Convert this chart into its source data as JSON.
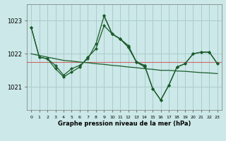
{
  "title": "Graphe pression niveau de la mer (hPa)",
  "bg_color": "#cce8e8",
  "grid_color": "#aacccc",
  "line_color": "#1a5c2a",
  "x_labels": [
    "0",
    "1",
    "2",
    "3",
    "4",
    "5",
    "6",
    "7",
    "8",
    "9",
    "10",
    "11",
    "12",
    "13",
    "14",
    "15",
    "16",
    "17",
    "18",
    "19",
    "20",
    "21",
    "22",
    "23"
  ],
  "yticks": [
    1021,
    1022,
    1023
  ],
  "ylim": [
    1020.3,
    1023.5
  ],
  "xlim": [
    -0.5,
    23.5
  ],
  "refline_y": 1021.75,
  "refline_color": "#cc3333",
  "line1": [
    1022.8,
    1021.9,
    1021.85,
    1021.65,
    1021.35,
    1021.55,
    1021.65,
    1021.85,
    1022.3,
    1023.15,
    1022.6,
    1022.45,
    1022.25,
    1021.75,
    1021.65,
    1020.95,
    1020.6,
    1021.05,
    1021.6,
    1021.7,
    1022.0,
    1022.05,
    1022.05,
    1021.7
  ],
  "line2_x": [
    0,
    1,
    2,
    3,
    4,
    5,
    6,
    7,
    8,
    9,
    10,
    11,
    12,
    13,
    14,
    15,
    16,
    17,
    18,
    19,
    20,
    21,
    22,
    23
  ],
  "line2": [
    1022.0,
    1021.95,
    1021.9,
    1021.85,
    1021.8,
    1021.78,
    1021.75,
    1021.73,
    1021.7,
    1021.68,
    1021.65,
    1021.63,
    1021.6,
    1021.58,
    1021.55,
    1021.53,
    1021.5,
    1021.5,
    1021.48,
    1021.47,
    1021.45,
    1021.43,
    1021.42,
    1021.4
  ],
  "line3_x": [
    0,
    1,
    2,
    3,
    4,
    5,
    6,
    7,
    8,
    9,
    10,
    11,
    12,
    13,
    14
  ],
  "line3": [
    1022.8,
    1021.9,
    1021.85,
    1021.55,
    1021.3,
    1021.45,
    1021.6,
    1021.9,
    1022.15,
    1022.85,
    1022.6,
    1022.45,
    1022.2,
    1021.75,
    1021.6
  ],
  "line4_x": [
    9,
    10,
    11,
    12,
    13,
    14,
    15,
    16,
    17,
    18,
    19,
    20,
    21,
    22,
    23
  ],
  "line4": [
    1023.15,
    1022.6,
    1022.45,
    1022.2,
    1021.75,
    1021.65,
    1020.95,
    1020.6,
    1021.05,
    1021.6,
    1021.7,
    1022.0,
    1022.05,
    1022.05,
    1021.7
  ]
}
